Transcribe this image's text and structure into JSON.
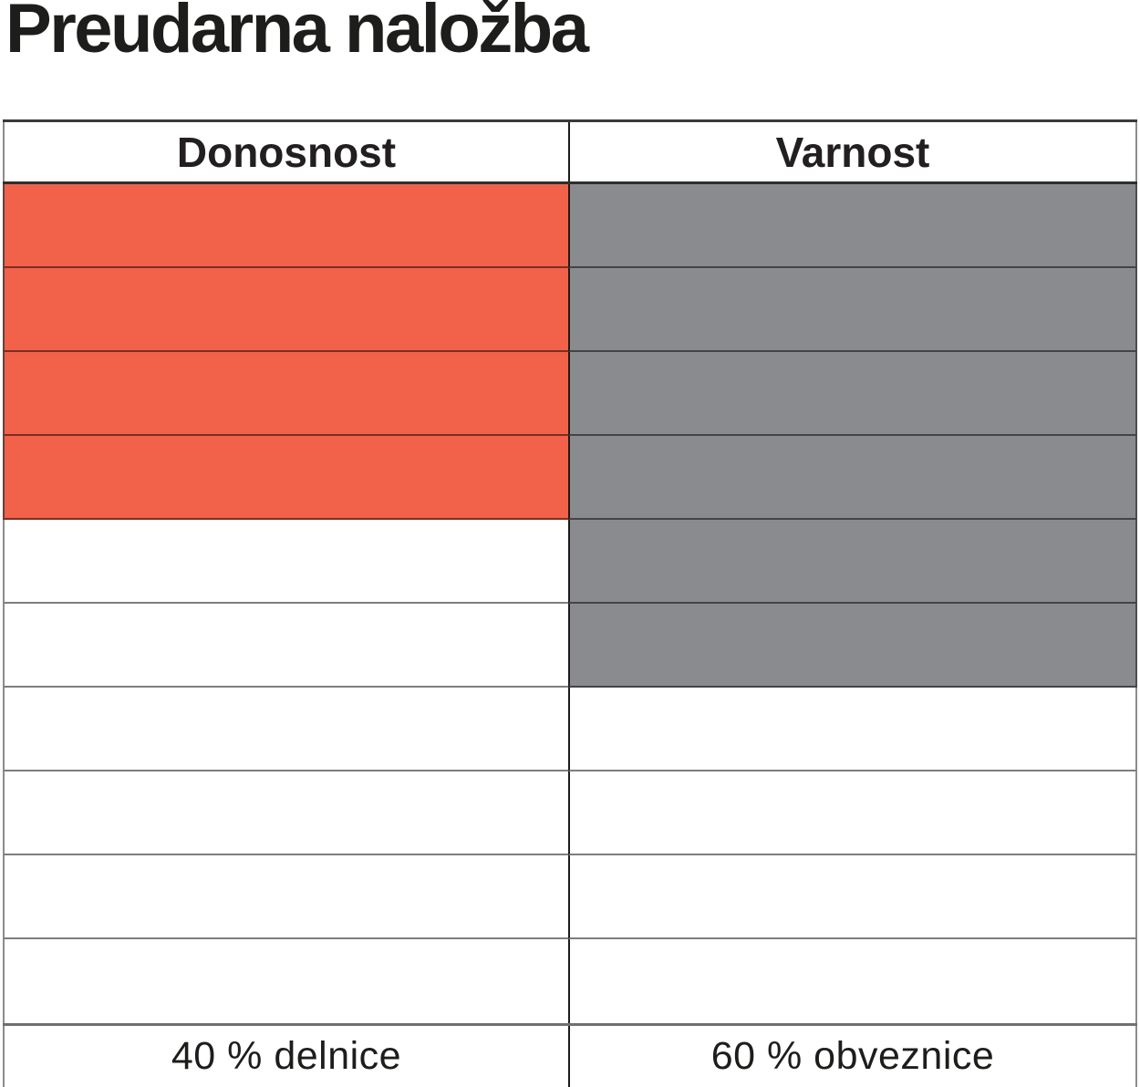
{
  "title": "Preudarna naložba",
  "colors": {
    "accent_red": "#F2614A",
    "fill_gray": "#898B8E",
    "border_dark": "#2E2E2D",
    "border_gray": "#6F7072",
    "text_black": "#1D1D1B"
  },
  "table": {
    "columns": [
      {
        "header": "Donosnost",
        "footer": "40 % delnice"
      },
      {
        "header": "Varnost",
        "footer": "60 % obveznice"
      }
    ],
    "rows": [
      {
        "left": true,
        "right": true
      },
      {
        "left": true,
        "right": true
      },
      {
        "left": true,
        "right": true
      },
      {
        "left": true,
        "right": true
      },
      {
        "left": false,
        "right": true
      },
      {
        "left": false,
        "right": true
      },
      {
        "left": false,
        "right": false
      },
      {
        "left": false,
        "right": false
      },
      {
        "left": false,
        "right": false
      },
      {
        "left": false,
        "right": false
      }
    ]
  },
  "chart_data": {
    "type": "table",
    "title": "Preudarna naložba",
    "categories": [
      "Donosnost",
      "Varnost"
    ],
    "series": [
      {
        "name": "Donosnost",
        "filled_cells": 4,
        "total_cells": 10,
        "value_pct": 40,
        "fill_color": "#F2614A",
        "caption": "40 % delnice"
      },
      {
        "name": "Varnost",
        "filled_cells": 6,
        "total_cells": 10,
        "value_pct": 60,
        "fill_color": "#898B8E",
        "caption": "60 % obveznice"
      }
    ],
    "layout": "two-column rating grid of 10 rows; filled cells counted from the top; captions under each column; no axes, no legend"
  }
}
